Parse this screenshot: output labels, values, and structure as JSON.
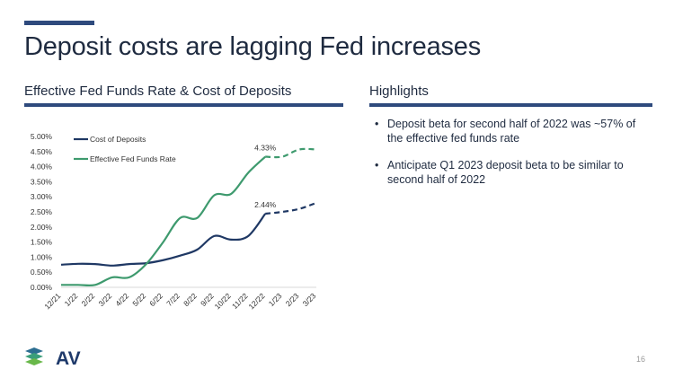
{
  "slide": {
    "title": "Deposit costs are lagging Fed increases",
    "page_number": "16",
    "accent_color": "#2e4a7d"
  },
  "left_section": {
    "title": "Effective Fed Funds Rate & Cost of Deposits"
  },
  "right_section": {
    "title": "Highlights",
    "bullets": [
      "Deposit beta for second half of 2022 was ~57% of the effective fed funds rate",
      "Anticipate Q1 2023 deposit beta to be similar to second half of 2022"
    ]
  },
  "logo": {
    "text": "AV"
  },
  "chart_data": {
    "type": "line",
    "categories": [
      "12/21",
      "1/22",
      "2/22",
      "3/22",
      "4/22",
      "5/22",
      "6/22",
      "7/22",
      "8/22",
      "9/22",
      "10/22",
      "11/22",
      "12/22",
      "1/23",
      "2/23",
      "3/23"
    ],
    "ylim": [
      0,
      5
    ],
    "ytick_labels": [
      "0.00%",
      "0.50%",
      "1.00%",
      "1.50%",
      "2.00%",
      "2.50%",
      "3.00%",
      "3.50%",
      "4.00%",
      "4.50%",
      "5.00%"
    ],
    "legend_position": "top-left",
    "series": [
      {
        "name": "Cost of Deposits",
        "color": "#1f3864",
        "values": [
          0.75,
          0.78,
          0.77,
          0.72,
          0.77,
          0.8,
          0.9,
          1.05,
          1.25,
          1.7,
          1.58,
          1.7,
          2.44,
          2.5,
          2.6,
          2.8
        ],
        "projected_from_index": 12,
        "data_label": {
          "index": 12,
          "text": "2.44%"
        }
      },
      {
        "name": "Effective Fed Funds Rate",
        "color": "#3e9a6e",
        "values": [
          0.08,
          0.08,
          0.08,
          0.33,
          0.33,
          0.77,
          1.5,
          2.3,
          2.3,
          3.05,
          3.1,
          3.8,
          4.33,
          4.33,
          4.57,
          4.57
        ],
        "projected_from_index": 12,
        "data_label": {
          "index": 12,
          "text": "4.33%"
        }
      }
    ]
  }
}
